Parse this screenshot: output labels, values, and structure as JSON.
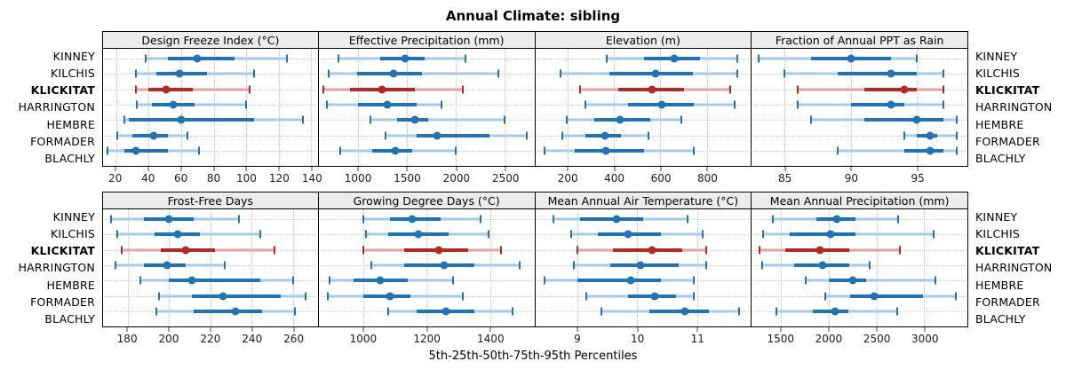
{
  "title": "Annual Climate: sibling",
  "caption": "5th-25th-50th-75th-95th Percentiles",
  "colors": {
    "blue": "#2173B4",
    "blue_light": "#A7CBE4",
    "red": "#B22A26",
    "red_light": "#DFA5A1",
    "grid": "#C4C4C4",
    "strip_bg": "#ECECEC",
    "border": "#000000"
  },
  "chart_data": {
    "type": "scatter",
    "subtype": "percentile-interval-dotplot (lattice, 2 rows x 4 columns)",
    "title": "Annual Climate: sibling",
    "xlabel": "5th-25th-50th-75th-95th Percentiles",
    "grid": "dotted",
    "percentiles": [
      5,
      25,
      50,
      75,
      95
    ],
    "sites": [
      "KINNEY",
      "KILCHIS",
      "KLICKITAT",
      "HARRINGTON",
      "HEMBRE",
      "FORMADER",
      "BLACHLY"
    ],
    "highlight_site": "KLICKITAT",
    "panels": [
      {
        "title": "Design Freeze Index (°C)",
        "xlim": [
          12,
          144
        ],
        "ticks": [
          20,
          40,
          60,
          80,
          100,
          120,
          140
        ],
        "values": [
          [
            38,
            52,
            70,
            93,
            125
          ],
          [
            32,
            45,
            59,
            76,
            105
          ],
          [
            32,
            40,
            51,
            67,
            102
          ],
          [
            33,
            42,
            55,
            68,
            100
          ],
          [
            25,
            28,
            60,
            105,
            135
          ],
          [
            21,
            30,
            43,
            52,
            64
          ],
          [
            15,
            25,
            32,
            52,
            71
          ]
        ]
      },
      {
        "title": "Effective Precipitation (mm)",
        "xlim": [
          600,
          2800
        ],
        "ticks": [
          1000,
          1500,
          2000,
          2500
        ],
        "values": [
          [
            800,
            1230,
            1480,
            1680,
            2100
          ],
          [
            700,
            990,
            1360,
            1650,
            2430
          ],
          [
            650,
            920,
            1250,
            1580,
            2070
          ],
          [
            680,
            1000,
            1300,
            1600,
            1850
          ],
          [
            1130,
            1400,
            1580,
            1720,
            2500
          ],
          [
            1280,
            1600,
            1810,
            2340,
            2720
          ],
          [
            820,
            1150,
            1380,
            1550,
            2000
          ]
        ]
      },
      {
        "title": "Elevation (m)",
        "xlim": [
          60,
          990
        ],
        "ticks": [
          200,
          400,
          600,
          800
        ],
        "values": [
          [
            370,
            530,
            660,
            770,
            930
          ],
          [
            170,
            380,
            580,
            740,
            930
          ],
          [
            255,
            420,
            565,
            700,
            900
          ],
          [
            275,
            460,
            605,
            745,
            920
          ],
          [
            195,
            315,
            425,
            555,
            690
          ],
          [
            175,
            275,
            360,
            430,
            550
          ],
          [
            100,
            230,
            365,
            530,
            745
          ]
        ]
      },
      {
        "title": "Fraction of Annual PPT as Rain",
        "xlim": [
          82.5,
          98.8
        ],
        "ticks": [
          85,
          90,
          95
        ],
        "values": [
          [
            83,
            87,
            90,
            93,
            95
          ],
          [
            85,
            89,
            93,
            95,
            97
          ],
          [
            86,
            91,
            94,
            95,
            97
          ],
          [
            86,
            90,
            93,
            94,
            97
          ],
          [
            87,
            91,
            95,
            97,
            98
          ],
          [
            94,
            95,
            96,
            96.5,
            98
          ],
          [
            89,
            94,
            96,
            97,
            98
          ]
        ]
      },
      {
        "title": "Frost-Free Days",
        "xlim": [
          168,
          272
        ],
        "ticks": [
          180,
          200,
          220,
          240,
          260
        ],
        "values": [
          [
            172,
            188,
            200,
            212,
            234
          ],
          [
            175,
            193,
            204,
            215,
            244
          ],
          [
            177,
            196,
            208,
            222,
            251
          ],
          [
            174,
            188,
            199,
            208,
            227
          ],
          [
            186,
            200,
            211,
            244,
            260
          ],
          [
            195,
            211,
            226,
            254,
            266
          ],
          [
            194,
            212,
            232,
            245,
            261
          ]
        ]
      },
      {
        "title": "Growing Degree Days (°C)",
        "xlim": [
          860,
          1540
        ],
        "ticks": [
          1000,
          1200,
          1400
        ],
        "values": [
          [
            1000,
            1085,
            1155,
            1245,
            1370
          ],
          [
            1010,
            1080,
            1175,
            1270,
            1395
          ],
          [
            1000,
            1130,
            1240,
            1330,
            1435
          ],
          [
            1025,
            1130,
            1255,
            1350,
            1495
          ],
          [
            895,
            970,
            1055,
            1140,
            1285
          ],
          [
            890,
            1000,
            1085,
            1150,
            1315
          ],
          [
            1080,
            1170,
            1260,
            1350,
            1470
          ]
        ]
      },
      {
        "title": "Mean Annual Air Temperature (°C)",
        "xlim": [
          8.3,
          11.9
        ],
        "ticks": [
          9,
          10,
          11
        ],
        "values": [
          [
            8.6,
            9.05,
            9.65,
            10.1,
            10.85
          ],
          [
            8.9,
            9.35,
            9.85,
            10.4,
            11.1
          ],
          [
            9.0,
            9.6,
            10.25,
            10.75,
            11.15
          ],
          [
            8.95,
            9.55,
            10.05,
            10.7,
            11.15
          ],
          [
            8.45,
            9.0,
            9.9,
            10.4,
            10.95
          ],
          [
            9.15,
            9.85,
            10.3,
            10.65,
            10.95
          ],
          [
            9.4,
            10.2,
            10.8,
            11.2,
            11.7
          ]
        ]
      },
      {
        "title": "Mean Annual Precipitation (mm)",
        "xlim": [
          1200,
          3450
        ],
        "ticks": [
          1500,
          2000,
          2500,
          3000
        ],
        "values": [
          [
            1420,
            1870,
            2090,
            2280,
            2730
          ],
          [
            1320,
            1600,
            2020,
            2280,
            3100
          ],
          [
            1280,
            1550,
            1910,
            2220,
            2750
          ],
          [
            1310,
            1640,
            1940,
            2220,
            2430
          ],
          [
            1760,
            2000,
            2250,
            2390,
            3120
          ],
          [
            1970,
            2230,
            2480,
            2990,
            3330
          ],
          [
            1460,
            1840,
            2070,
            2210,
            2720
          ]
        ]
      }
    ]
  }
}
